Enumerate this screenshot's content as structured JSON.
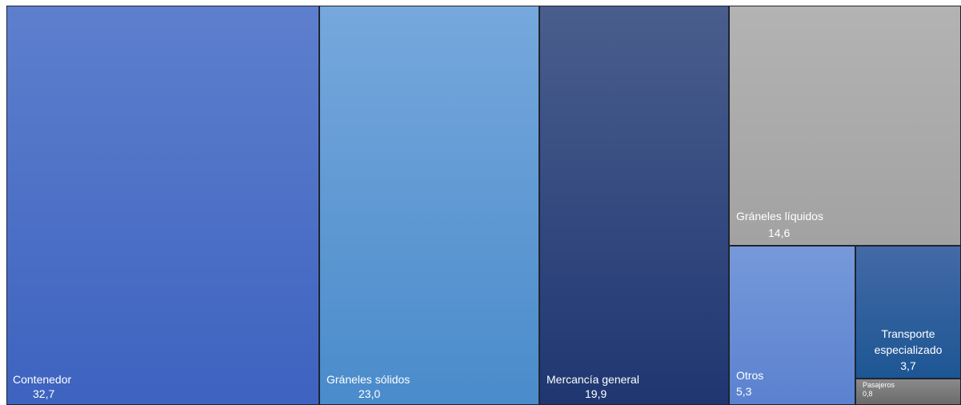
{
  "chart_data": {
    "type": "treemap",
    "title": "",
    "unit": "",
    "items": [
      {
        "name": "Contenedor",
        "value": 32.7,
        "value_label": "32,7",
        "color_top": "#5e7fcd",
        "color_bottom": "#3d63c0"
      },
      {
        "name": "Gráneles sólidos",
        "value": 23.0,
        "value_label": "23,0",
        "color_top": "#76a8dc",
        "color_bottom": "#4a8bcb"
      },
      {
        "name": "Mercancía general",
        "value": 19.9,
        "value_label": "19,9",
        "color_top": "#4a5e8d",
        "color_bottom": "#1f3671"
      },
      {
        "name": "Gráneles líquidos",
        "value": 14.6,
        "value_label": "14,6",
        "color_top": "#b3b3b3",
        "color_bottom": "#a2a2a2"
      },
      {
        "name": "Otros",
        "value": 5.3,
        "value_label": "5,3",
        "color_top": "#7699da",
        "color_bottom": "#5b82cf"
      },
      {
        "name": "Transporte especializado",
        "value": 3.7,
        "value_label": "3,7",
        "color_top": "#436aa6",
        "color_bottom": "#1d5694"
      },
      {
        "name": "Pasajeros",
        "value": 0.8,
        "value_label": "0,8",
        "color_top": "#8a8a8a",
        "color_bottom": "#6b6b6b"
      }
    ]
  }
}
